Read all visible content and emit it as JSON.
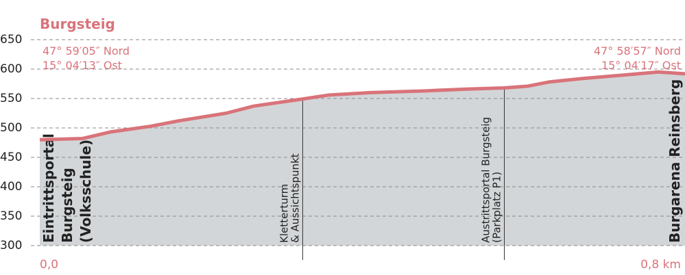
{
  "chart_data": {
    "type": "area",
    "title": "Burgsteig",
    "x": [
      0,
      0.053,
      0.087,
      0.138,
      0.172,
      0.231,
      0.265,
      0.325,
      0.359,
      0.41,
      0.478,
      0.529,
      0.576,
      0.605,
      0.631,
      0.673,
      0.716,
      0.767,
      0.8
    ],
    "values": [
      480,
      482,
      493,
      503,
      512,
      525,
      537,
      549,
      556,
      560,
      563,
      566,
      568,
      571,
      578,
      584,
      589,
      595,
      592
    ],
    "color": "#d9737a",
    "fill": "#d3d6d8",
    "xlim": [
      0,
      0.8
    ],
    "xticks": [
      {
        "value": 0,
        "label": "0,0"
      },
      {
        "value": 0.8,
        "label": "0,8 km"
      }
    ],
    "ylim": [
      300,
      650
    ],
    "yticks": [
      300,
      350,
      400,
      450,
      500,
      550,
      600,
      650
    ],
    "grid": true,
    "start_coords": [
      "47° 59′05″ Nord",
      "15° 04′13″ Ost"
    ],
    "end_coords": [
      "47° 58′57″ Nord",
      "15° 04′17″ Ost"
    ],
    "waypoints": [
      {
        "x": 0,
        "lines": [
          "Eintrittsportal",
          "Burgsteig",
          "(Volksschule)"
        ],
        "bold": true
      },
      {
        "x": 0.326,
        "lines": [
          "Kletterturm",
          "& Aussichtspunkt"
        ],
        "bold": false
      },
      {
        "x": 0.576,
        "lines": [
          "Austrittsportal Burgsteig",
          "(Parkplatz P1)"
        ],
        "bold": false
      },
      {
        "x": 0.8,
        "lines": [
          "Burgarena Reinsberg"
        ],
        "bold": true
      }
    ]
  }
}
